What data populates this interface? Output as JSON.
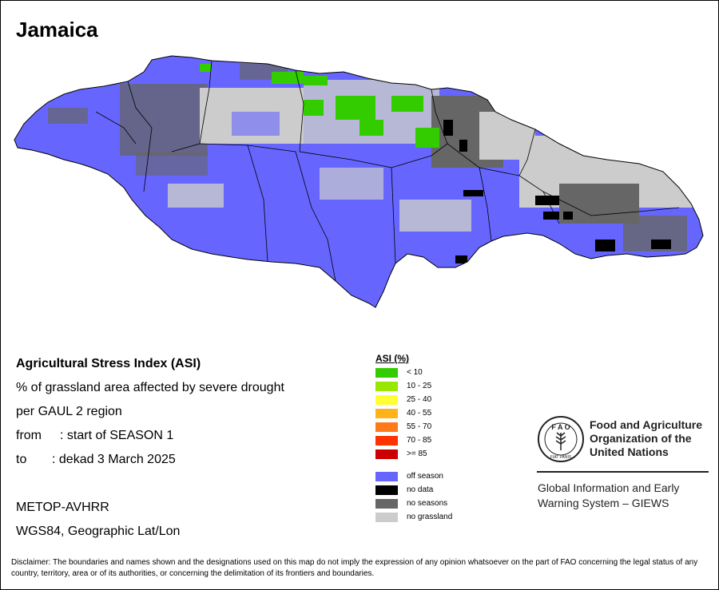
{
  "map": {
    "title": "Jamaica"
  },
  "info": {
    "index_title": "Agricultural Stress Index (ASI)",
    "line2": "% of grassland area affected by severe drought",
    "line3": "per GAUL 2 region",
    "from_label": "from",
    "from_value": ": start of SEASON 1",
    "to_label": "to",
    "to_value": ": dekad 3 March 2025",
    "sensor": "METOP-AVHRR",
    "projection": "WGS84, Geographic Lat/Lon"
  },
  "legend": {
    "title": "ASI (%)",
    "classes": [
      {
        "label": "< 10",
        "color": "#33cc00"
      },
      {
        "label": "10 - 25",
        "color": "#99e600"
      },
      {
        "label": "25 - 40",
        "color": "#ffff33"
      },
      {
        "label": "40 - 55",
        "color": "#ffb31a"
      },
      {
        "label": "55 - 70",
        "color": "#ff7a1a"
      },
      {
        "label": "70 - 85",
        "color": "#ff3300"
      },
      {
        "label": ">= 85",
        "color": "#cc0000"
      }
    ],
    "other": [
      {
        "label": "off season",
        "color": "#6666ff"
      },
      {
        "label": "no data",
        "color": "#000000"
      },
      {
        "label": "no seasons",
        "color": "#666666"
      },
      {
        "label": "no grassland",
        "color": "#cccccc"
      }
    ]
  },
  "org": {
    "name_line1": "Food and Agriculture",
    "name_line2": "Organization of the",
    "name_line3": "United Nations",
    "giews_line1": "Global Information and Early",
    "giews_line2": "Warning System – GIEWS",
    "logo_letters": "F A O",
    "logo_motto": "FIAT PANIS"
  },
  "disclaimer": "Disclaimer: The boundaries and names shown and the designations used on this map do not imply the expression of any opinion whatsoever on the part of FAO concerning the legal status of any country, territory, area or of its authorities, or concerning the delimitation of its frontiers and boundaries."
}
